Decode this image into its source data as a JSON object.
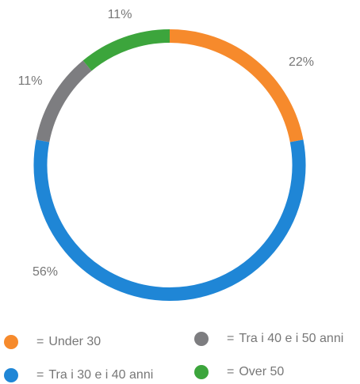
{
  "chart_data": {
    "type": "donut",
    "categories": [
      "Under 30",
      "Tra i 30 e i 40 anni",
      "Tra i 40 e i 50 anni",
      "Over 50"
    ],
    "values": [
      22,
      56,
      11,
      11
    ],
    "value_labels": [
      "22%",
      "56%",
      "11%",
      "11%"
    ],
    "colors": [
      "#f68a2c",
      "#1f86d6",
      "#7d7d80",
      "#3ca53c"
    ],
    "legend_separator": "="
  }
}
